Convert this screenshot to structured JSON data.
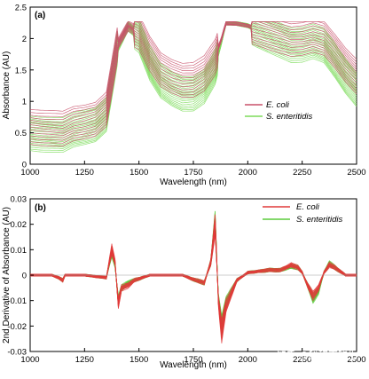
{
  "watermark": "知乎 @科研百晓生",
  "chart_data": [
    {
      "type": "line",
      "panel_label": "(a)",
      "xlabel": "Wavelength (nm)",
      "ylabel": "Absorbance (AU)",
      "xlim": [
        1000,
        2500
      ],
      "ylim": [
        0,
        2.5
      ],
      "xticks": [
        1000,
        1250,
        1500,
        1750,
        2000,
        2250,
        2500
      ],
      "xtick_labels": [
        "1000",
        "1250",
        "1500",
        "1750",
        "2000",
        "2250",
        "2500"
      ],
      "yticks": [
        0,
        0.5,
        1,
        1.5,
        2,
        2.5
      ],
      "ytick_labels": [
        "0",
        "0.5",
        "1",
        "1.5",
        "2",
        "2.5"
      ],
      "grid": false,
      "legend_position": "right",
      "series_colors": {
        "E. coli": "#c8506a",
        "S. enteritidis": "#7ddc5a"
      },
      "spectra_count": {
        "E. coli": 14,
        "S. enteritidis": 22
      },
      "series": [
        {
          "name": "E. coli",
          "x": [
            1000,
            1050,
            1100,
            1150,
            1200,
            1250,
            1300,
            1350,
            1400,
            1450,
            1500,
            1550,
            1600,
            1650,
            1700,
            1750,
            1800,
            1850,
            1880,
            1900,
            1950,
            2000,
            2050,
            2100,
            2150,
            2200,
            2250,
            2300,
            2350,
            2400,
            2450,
            2500
          ],
          "values": [
            0.6,
            0.58,
            0.57,
            0.56,
            0.64,
            0.67,
            0.72,
            0.88,
            1.9,
            2.2,
            2.1,
            1.75,
            1.5,
            1.4,
            1.34,
            1.35,
            1.45,
            1.7,
            2.0,
            2.24,
            2.23,
            2.2,
            2.15,
            2.1,
            2.05,
            2.0,
            2.01,
            2.05,
            2.0,
            1.8,
            1.58,
            1.4
          ]
        },
        {
          "name": "S. enteritidis",
          "x": [
            1000,
            1050,
            1100,
            1150,
            1200,
            1250,
            1300,
            1350,
            1400,
            1450,
            1500,
            1550,
            1600,
            1650,
            1700,
            1750,
            1800,
            1850,
            1880,
            1900,
            1950,
            2000,
            2050,
            2100,
            2150,
            2200,
            2250,
            2300,
            2350,
            2400,
            2450,
            2500
          ],
          "values": [
            0.5,
            0.48,
            0.47,
            0.46,
            0.54,
            0.58,
            0.63,
            0.8,
            1.85,
            2.2,
            2.05,
            1.6,
            1.32,
            1.2,
            1.12,
            1.13,
            1.25,
            1.55,
            1.95,
            2.24,
            2.23,
            2.2,
            2.12,
            2.05,
            1.98,
            1.9,
            1.9,
            1.95,
            1.88,
            1.65,
            1.4,
            1.2
          ]
        }
      ]
    },
    {
      "type": "line",
      "panel_label": "(b)",
      "xlabel": "Wavelength (nm)",
      "ylabel": "2nd Derivative of Absorbance (AU)",
      "xlim": [
        1000,
        2500
      ],
      "ylim": [
        -0.03,
        0.03
      ],
      "xticks": [
        1000,
        1250,
        1500,
        1750,
        2000,
        2250,
        2500
      ],
      "xtick_labels": [
        "1000",
        "1250",
        "1500",
        "1750",
        "2000",
        "2250",
        "2500"
      ],
      "yticks": [
        -0.03,
        -0.02,
        -0.01,
        0,
        0.01,
        0.02,
        0.03
      ],
      "ytick_labels": [
        "-0.03",
        "-0.02",
        "-0.01",
        "0",
        "0.01",
        "0.02",
        "0.03"
      ],
      "grid": false,
      "legend_position": "top-right",
      "series_colors": {
        "E. coli": "#e03a3a",
        "S. enteritidis": "#5ccc3c"
      },
      "spectra_count": {
        "E. coli": 14,
        "S. enteritidis": 22
      },
      "series": [
        {
          "name": "E. coli",
          "x": [
            1000,
            1100,
            1130,
            1150,
            1160,
            1250,
            1350,
            1375,
            1390,
            1405,
            1420,
            1450,
            1480,
            1550,
            1650,
            1700,
            1760,
            1800,
            1830,
            1850,
            1865,
            1880,
            1900,
            1950,
            2000,
            2100,
            2150,
            2200,
            2230,
            2250,
            2275,
            2300,
            2325,
            2350,
            2375,
            2400,
            2450,
            2500
          ],
          "values": [
            0,
            0,
            -0.001,
            -0.002,
            0,
            0,
            -0.001,
            0.01,
            0.005,
            -0.011,
            -0.005,
            -0.004,
            -0.002,
            0,
            0,
            0,
            -0.002,
            -0.003,
            0.005,
            0.02,
            -0.01,
            -0.022,
            -0.012,
            -0.002,
            0.001,
            0.002,
            0.002,
            0.004,
            0.003,
            0.001,
            -0.004,
            -0.008,
            -0.005,
            0.001,
            0.004,
            0.003,
            0,
            0
          ]
        },
        {
          "name": "S. enteritidis",
          "x": [
            1000,
            1100,
            1130,
            1150,
            1160,
            1250,
            1350,
            1375,
            1390,
            1405,
            1420,
            1450,
            1480,
            1550,
            1650,
            1700,
            1760,
            1800,
            1830,
            1850,
            1865,
            1880,
            1900,
            1950,
            2000,
            2100,
            2150,
            2200,
            2230,
            2250,
            2275,
            2300,
            2325,
            2350,
            2375,
            2400,
            2450,
            2500
          ],
          "values": [
            0,
            0,
            -0.001,
            -0.002,
            0,
            0,
            -0.001,
            0.009,
            0.004,
            -0.01,
            -0.005,
            -0.003,
            -0.002,
            0,
            0,
            0,
            -0.002,
            -0.003,
            0.005,
            0.021,
            -0.009,
            -0.02,
            -0.011,
            -0.002,
            0.001,
            0.002,
            0.002,
            0.0035,
            0.003,
            0.001,
            -0.004,
            -0.009,
            -0.006,
            0.001,
            0.0045,
            0.003,
            0,
            0
          ]
        }
      ]
    }
  ]
}
